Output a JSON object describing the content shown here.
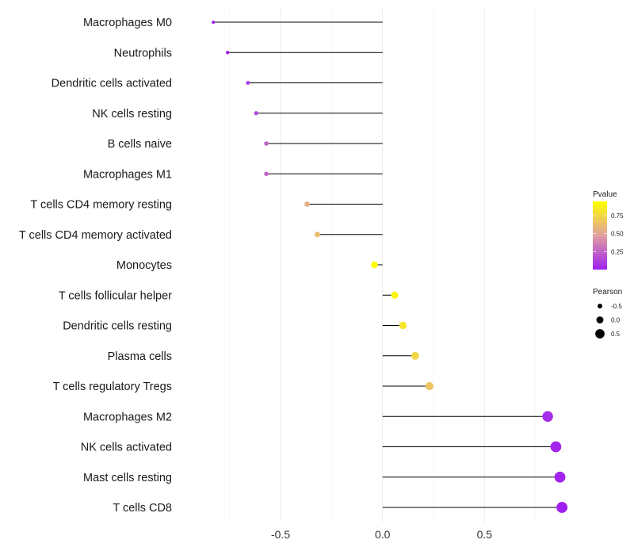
{
  "chart_data": {
    "type": "lollipop",
    "title": "",
    "xlabel": "",
    "ylabel": "",
    "xlim": [
      -0.99,
      1.0
    ],
    "x_ticks": [
      -0.5,
      0.0,
      0.5
    ],
    "x_tick_labels": [
      "-0.5",
      "0.0",
      "0.5"
    ],
    "grid": true,
    "points": [
      {
        "label": "Macrophages M0",
        "pearson": -0.83,
        "pvalue": 0.0
      },
      {
        "label": "Neutrophils",
        "pearson": -0.76,
        "pvalue": 0.02
      },
      {
        "label": "Dendritic cells activated",
        "pearson": -0.66,
        "pvalue": 0.12
      },
      {
        "label": "NK cells resting",
        "pearson": -0.62,
        "pvalue": 0.15
      },
      {
        "label": "B cells naive",
        "pearson": -0.57,
        "pvalue": 0.25
      },
      {
        "label": "Macrophages M1",
        "pearson": -0.57,
        "pvalue": 0.25
      },
      {
        "label": "T cells CD4 memory resting",
        "pearson": -0.37,
        "pvalue": 0.55
      },
      {
        "label": "T cells CD4 memory activated",
        "pearson": -0.32,
        "pvalue": 0.62
      },
      {
        "label": "Monocytes",
        "pearson": -0.04,
        "pvalue": 0.95
      },
      {
        "label": "T cells follicular helper",
        "pearson": 0.06,
        "pvalue": 0.9
      },
      {
        "label": "Dendritic cells resting",
        "pearson": 0.1,
        "pvalue": 0.82
      },
      {
        "label": "Plasma cells",
        "pearson": 0.16,
        "pvalue": 0.74
      },
      {
        "label": "T cells regulatory  Tregs ",
        "pearson": 0.23,
        "pvalue": 0.66
      },
      {
        "label": "Macrophages M2",
        "pearson": 0.81,
        "pvalue": 0.05
      },
      {
        "label": "NK cells activated",
        "pearson": 0.85,
        "pvalue": 0.02
      },
      {
        "label": "Mast cells resting",
        "pearson": 0.87,
        "pvalue": 0.01
      },
      {
        "label": "T cells CD8",
        "pearson": 0.88,
        "pvalue": 0.0
      }
    ],
    "color_legend": {
      "title": "Pvalue",
      "ticks": [
        0.25,
        0.5,
        0.75
      ],
      "tick_labels": [
        "0.25",
        "0.50",
        "0.75"
      ],
      "range": [
        0.0,
        0.95
      ],
      "low_color": "#a020f0",
      "mid_color": "#e0a0a0",
      "high_color": "#ffff00"
    },
    "size_legend": {
      "title": "Pearson",
      "values": [
        -0.5,
        0.0,
        0.5
      ],
      "labels": [
        "-0.5",
        "0.0",
        "0.5"
      ]
    }
  }
}
